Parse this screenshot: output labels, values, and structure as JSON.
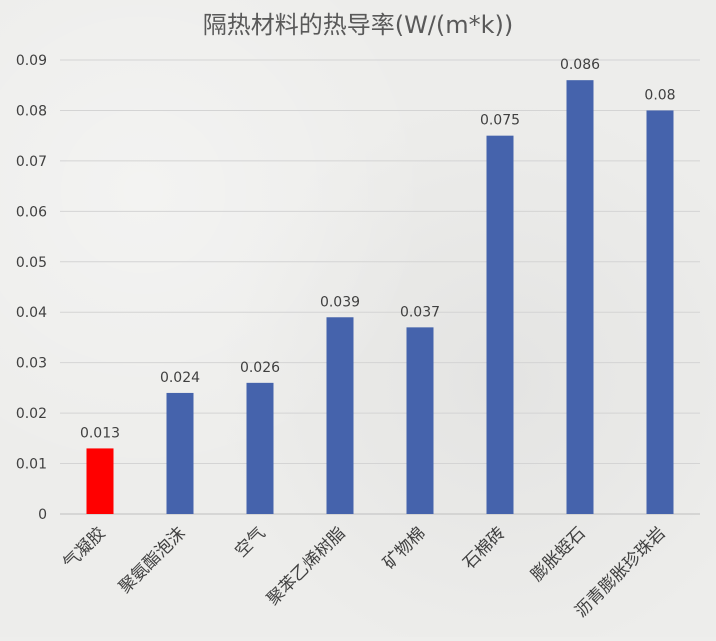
{
  "chart_data": {
    "type": "bar",
    "title": "隔热材料的热导率(W/(m*k))",
    "categories": [
      "气凝胶",
      "聚氨酯泡沫",
      "空气",
      "聚苯乙烯树脂",
      "矿物棉",
      "石棉砖",
      "膨胀蛭石",
      "沥青膨胀珍珠岩"
    ],
    "values": [
      0.013,
      0.024,
      0.026,
      0.039,
      0.037,
      0.075,
      0.086,
      0.08
    ],
    "data_labels": [
      "0.013",
      "0.024",
      "0.026",
      "0.039",
      "0.037",
      "0.075",
      "0.086",
      "0.08"
    ],
    "bar_colors": [
      "#ff0000",
      "#4563ac",
      "#4563ac",
      "#4563ac",
      "#4563ac",
      "#4563ac",
      "#4563ac",
      "#4563ac"
    ],
    "ylim": [
      0,
      0.09
    ],
    "yticks": [
      0,
      0.01,
      0.02,
      0.03,
      0.04,
      0.05,
      0.06,
      0.07,
      0.08,
      0.09
    ],
    "ytick_labels": [
      "0",
      "0.01",
      "0.02",
      "0.03",
      "0.04",
      "0.05",
      "0.06",
      "0.07",
      "0.08",
      "0.09"
    ],
    "xlabel": "",
    "ylabel": "",
    "grid": true,
    "legend": "none"
  }
}
